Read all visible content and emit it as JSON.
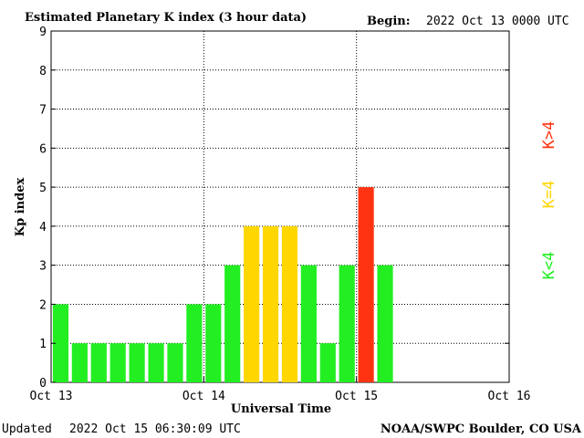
{
  "header": {
    "title": "Estimated Planetary K index (3 hour data)",
    "begin_label": "Begin:",
    "begin_value": "2022 Oct 13 0000 UTC"
  },
  "footer": {
    "updated_label": "Updated",
    "updated_value": "2022 Oct 15 06:30:09 UTC",
    "source": "NOAA/SWPC Boulder, CO USA"
  },
  "legend": {
    "low": "K<4",
    "mid": "K=4",
    "high": "K>4"
  },
  "colors": {
    "low": "#22ee22",
    "mid": "#ffd700",
    "high": "#ff3311"
  },
  "chart_data": {
    "type": "bar",
    "title": "Estimated Planetary K index (3 hour data)",
    "xlabel": "Universal Time",
    "ylabel": "Kp index",
    "ylim": [
      0,
      9
    ],
    "yticks": [
      "0",
      "1",
      "2",
      "3",
      "4",
      "5",
      "6",
      "7",
      "8",
      "9"
    ],
    "xticks": [
      "Oct 13",
      "Oct 14",
      "Oct 15",
      "Oct 16"
    ],
    "x_range_hours": [
      0,
      72
    ],
    "bar_interval_hours": 3,
    "grid": true,
    "categories": [
      "Oct 13 00",
      "Oct 13 03",
      "Oct 13 06",
      "Oct 13 09",
      "Oct 13 12",
      "Oct 13 15",
      "Oct 13 18",
      "Oct 13 21",
      "Oct 14 00",
      "Oct 14 03",
      "Oct 14 06",
      "Oct 14 09",
      "Oct 14 12",
      "Oct 14 15",
      "Oct 14 18",
      "Oct 14 21",
      "Oct 15 00",
      "Oct 15 03"
    ],
    "values": [
      2,
      1,
      1,
      1,
      1,
      1,
      1,
      2,
      2,
      3,
      4,
      4,
      4,
      3,
      1,
      3,
      5,
      3
    ]
  }
}
